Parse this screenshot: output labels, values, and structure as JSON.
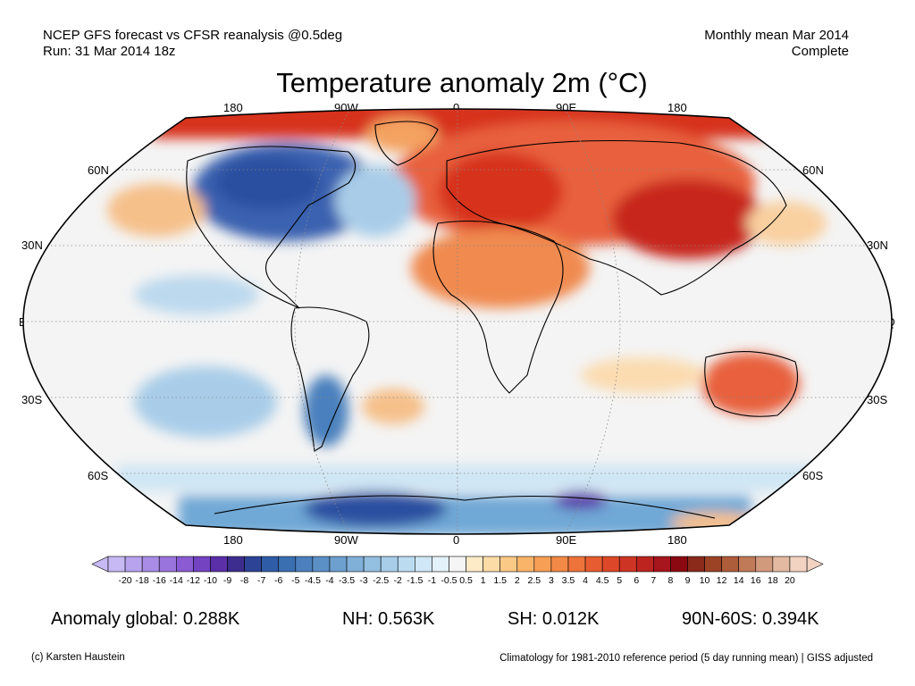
{
  "header": {
    "line1_left": "NCEP GFS forecast vs CFSR reanalysis @0.5deg",
    "line2_left": "Run: 31 Mar 2014 18z",
    "line1_right": "Monthly mean Mar 2014",
    "line2_right": "Complete"
  },
  "title": "Temperature anomaly 2m (°C)",
  "map": {
    "projection": "robinson",
    "lon_labels_top": [
      "180",
      "90W",
      "0",
      "90E",
      "180"
    ],
    "lon_labels_bottom": [
      "180",
      "90W",
      "0",
      "90E",
      "180"
    ],
    "lat_labels_left": [
      "60N",
      "30N",
      "EQ",
      "30S",
      "60S"
    ],
    "lat_labels_right": [
      "60N",
      "30N",
      "EQ",
      "30S",
      "60S"
    ],
    "colors": {
      "warm_strong": "#d7301f",
      "warm_mid": "#f4a261",
      "warm_light": "#fde0b5",
      "neutral": "#f4f4f4",
      "cool_light": "#cfe6f4",
      "cool_mid": "#6fa8d6",
      "cool_strong": "#2c4fa0"
    }
  },
  "colorbar": {
    "ticks": [
      "-20",
      "-18",
      "-16",
      "-14",
      "-12",
      "-10",
      "-9",
      "-8",
      "-7",
      "-6",
      "-5",
      "-4.5",
      "-4",
      "-3.5",
      "-3",
      "-2.5",
      "-2",
      "-1.5",
      "-1",
      "-0.5",
      "0.5",
      "1",
      "1.5",
      "2",
      "2.5",
      "3",
      "3.5",
      "4",
      "4.5",
      "5",
      "6",
      "7",
      "8",
      "9",
      "10",
      "12",
      "14",
      "16",
      "18",
      "20"
    ],
    "colors": [
      "#c7b9f3",
      "#b8a3ee",
      "#a98ce6",
      "#9a74dd",
      "#8a5bd2",
      "#7443c2",
      "#5a2fa8",
      "#3d2d8e",
      "#2c4396",
      "#2f5ca6",
      "#3a6fb2",
      "#4a80bd",
      "#5b90c6",
      "#6da0cf",
      "#80b0d8",
      "#93bfe1",
      "#a7cde9",
      "#bbdbf0",
      "#cfe7f6",
      "#e2f1fa",
      "#f5f5f5",
      "#fdebc8",
      "#fcdca6",
      "#fbc986",
      "#f9b46a",
      "#f79f55",
      "#f38946",
      "#ee733a",
      "#e75d31",
      "#dd4729",
      "#ce3424",
      "#bd2420",
      "#a6161c",
      "#8b0a12",
      "#8b2a1a",
      "#9c4326",
      "#ae5d3b",
      "#c07a58",
      "#d29a7c",
      "#e4b9a1",
      "#f2d3c2"
    ]
  },
  "stats": {
    "global": "Anomaly global: 0.288K",
    "nh": "NH: 0.563K",
    "sh": "SH: 0.012K",
    "arctic": "90N-60S: 0.394K"
  },
  "footer": {
    "left": "(c) Karsten Haustein",
    "right": "Climatology for 1981-2010 reference period (5 day running mean) | GISS adjusted"
  }
}
